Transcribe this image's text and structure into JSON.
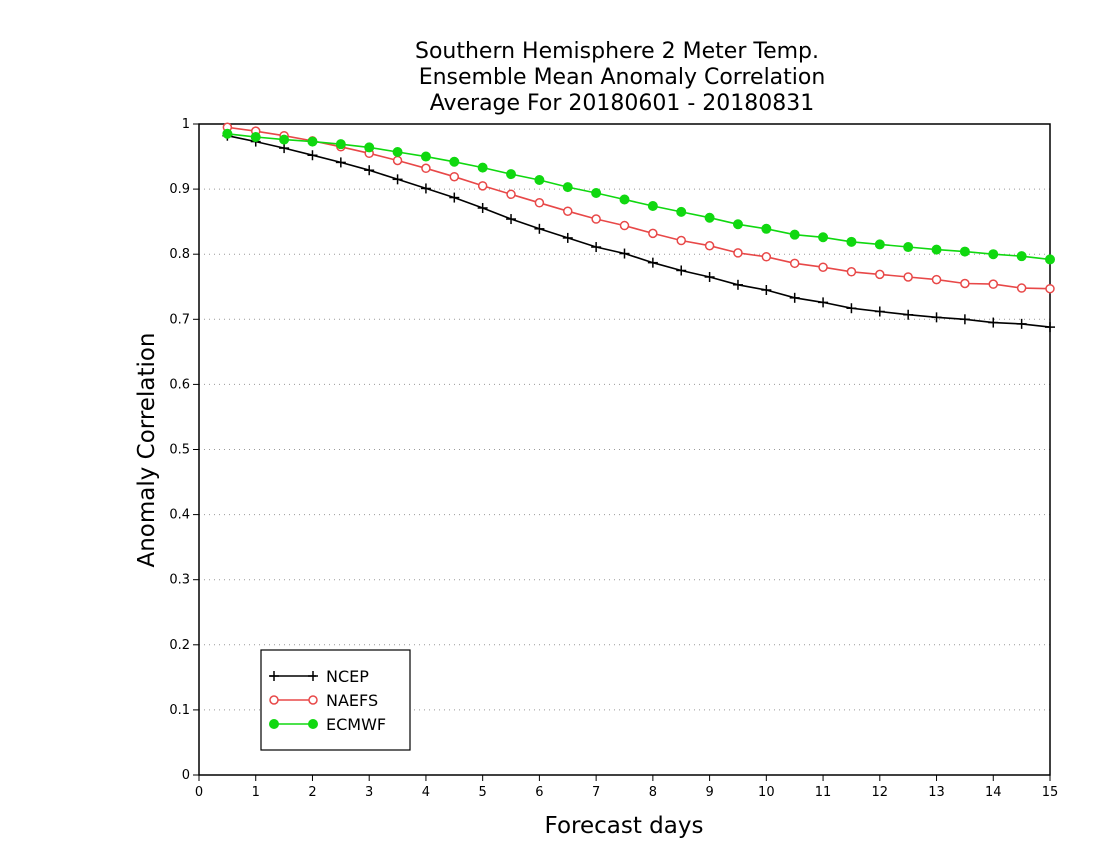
{
  "chart_data": {
    "type": "line",
    "title": [
      "Southern Hemisphere 2 Meter Temp.",
      "Ensemble Mean Anomaly Correlation",
      "Average For 20180601 - 20180831"
    ],
    "xlabel": "Forecast days",
    "ylabel": "Anomaly Correlation",
    "xlim": [
      0,
      15
    ],
    "ylim": [
      0,
      1
    ],
    "x_ticks": [
      "0",
      "1",
      "2",
      "3",
      "4",
      "5",
      "6",
      "7",
      "8",
      "9",
      "10",
      "11",
      "12",
      "13",
      "14",
      "15"
    ],
    "y_ticks": [
      "0",
      "0.1",
      "0.2",
      "0.3",
      "0.4",
      "0.5",
      "0.6",
      "0.7",
      "0.8",
      "0.9",
      "1"
    ],
    "grid": "horizontal-dotted",
    "legend_position": "bottom-left",
    "x": [
      0.5,
      1,
      1.5,
      2,
      2.5,
      3,
      3.5,
      4,
      4.5,
      5,
      5.5,
      6,
      6.5,
      7,
      7.5,
      8,
      8.5,
      9,
      9.5,
      10,
      10.5,
      11,
      11.5,
      12,
      12.5,
      13,
      13.5,
      14,
      14.5,
      15
    ],
    "series": [
      {
        "name": "NCEP",
        "color": "#000000",
        "marker": "plus",
        "values": [
          0.982,
          0.973,
          0.963,
          0.952,
          0.941,
          0.929,
          0.915,
          0.901,
          0.887,
          0.871,
          0.854,
          0.839,
          0.825,
          0.811,
          0.801,
          0.787,
          0.775,
          0.765,
          0.753,
          0.745,
          0.733,
          0.726,
          0.717,
          0.712,
          0.707,
          0.703,
          0.7,
          0.695,
          0.693,
          0.688
        ]
      },
      {
        "name": "NAEFS",
        "color": "#e84848",
        "marker": "open-circle",
        "values": [
          0.995,
          0.989,
          0.982,
          0.974,
          0.965,
          0.955,
          0.944,
          0.932,
          0.919,
          0.905,
          0.892,
          0.879,
          0.866,
          0.854,
          0.844,
          0.832,
          0.821,
          0.813,
          0.802,
          0.796,
          0.786,
          0.78,
          0.773,
          0.769,
          0.765,
          0.761,
          0.755,
          0.754,
          0.748,
          0.747
        ]
      },
      {
        "name": "ECMWF",
        "color": "#10d810",
        "marker": "filled-circle",
        "values": [
          0.985,
          0.98,
          0.976,
          0.973,
          0.969,
          0.964,
          0.957,
          0.95,
          0.942,
          0.933,
          0.923,
          0.914,
          0.903,
          0.894,
          0.884,
          0.874,
          0.865,
          0.856,
          0.846,
          0.839,
          0.83,
          0.826,
          0.819,
          0.815,
          0.811,
          0.807,
          0.804,
          0.8,
          0.797,
          0.792
        ]
      }
    ]
  }
}
